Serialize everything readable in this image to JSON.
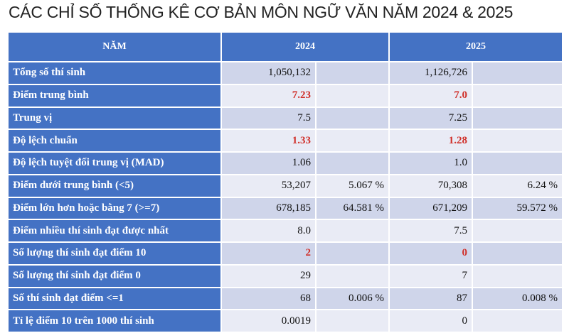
{
  "title": "CÁC CHỈ SỐ THỐNG KÊ CƠ BẢN MÔN NGỮ VĂN NĂM 2024 & 2025",
  "table": {
    "header": [
      "NĂM",
      "2024",
      "2025"
    ],
    "rows": [
      [
        "Tổng số thí sinh",
        "1,050,132",
        null,
        "1,126,726",
        null
      ],
      [
        "Điểm trung bình",
        "7.23",
        null,
        "7.0",
        null
      ],
      [
        "Trung vị",
        "7.5",
        null,
        "7.25",
        null
      ],
      [
        "Độ lệch chuẩn",
        "1.33",
        null,
        "1.28",
        null
      ],
      [
        "Độ lệch tuyệt đối trung vị (MAD)",
        "1.06",
        null,
        "1.0",
        null
      ],
      [
        "Điểm dưới trung bình (<5)",
        "53,207",
        "5.067 %",
        "70,308",
        "6.24 %"
      ],
      [
        "Điểm lớn hơn hoặc bằng 7 (>=7)",
        "678,185",
        "64.581 %",
        "671,209",
        "59.572 %"
      ],
      [
        "Điểm nhiều thí sinh đạt được nhất",
        "8.0",
        null,
        "7.5",
        null
      ],
      [
        "Số lượng thí sinh đạt điểm 10",
        "2",
        null,
        "0",
        null
      ],
      [
        "Số lượng thí sinh đạt điểm 0",
        "29",
        null,
        "7",
        null
      ],
      [
        "Số thí sinh đạt điểm <=1",
        "68",
        "0.006 %",
        "87",
        "0.008 %"
      ],
      [
        "Tỉ lệ điểm 10 trên 1000 thí sinh",
        "0.0019",
        null,
        "0",
        null
      ]
    ]
  }
}
